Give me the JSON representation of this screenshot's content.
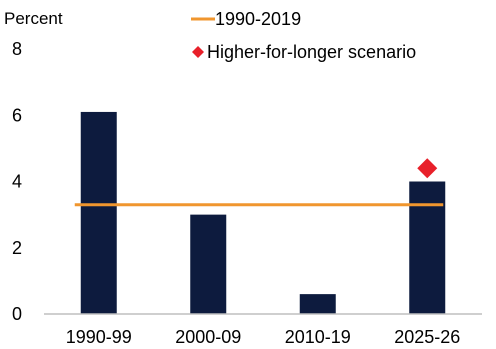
{
  "chart_data": {
    "type": "bar",
    "unit_label": "Percent",
    "categories": [
      "1990-99",
      "2000-09",
      "2010-19",
      "2025-26"
    ],
    "series": [
      {
        "values": [
          6.1,
          3.0,
          0.6,
          4.0
        ],
        "color": "#0d1b3e"
      }
    ],
    "reference_line": {
      "name": "1990-2019",
      "value": 3.3,
      "color": "#f0962e"
    },
    "scenario_point": {
      "name": "Higher-for-longer scenario",
      "category": "2025-26",
      "value": 4.4,
      "color": "#e8202a"
    },
    "ylim": [
      0,
      8
    ],
    "yticks": [
      0,
      2,
      4,
      6,
      8
    ],
    "grid": false,
    "legend_position": "top-right"
  }
}
